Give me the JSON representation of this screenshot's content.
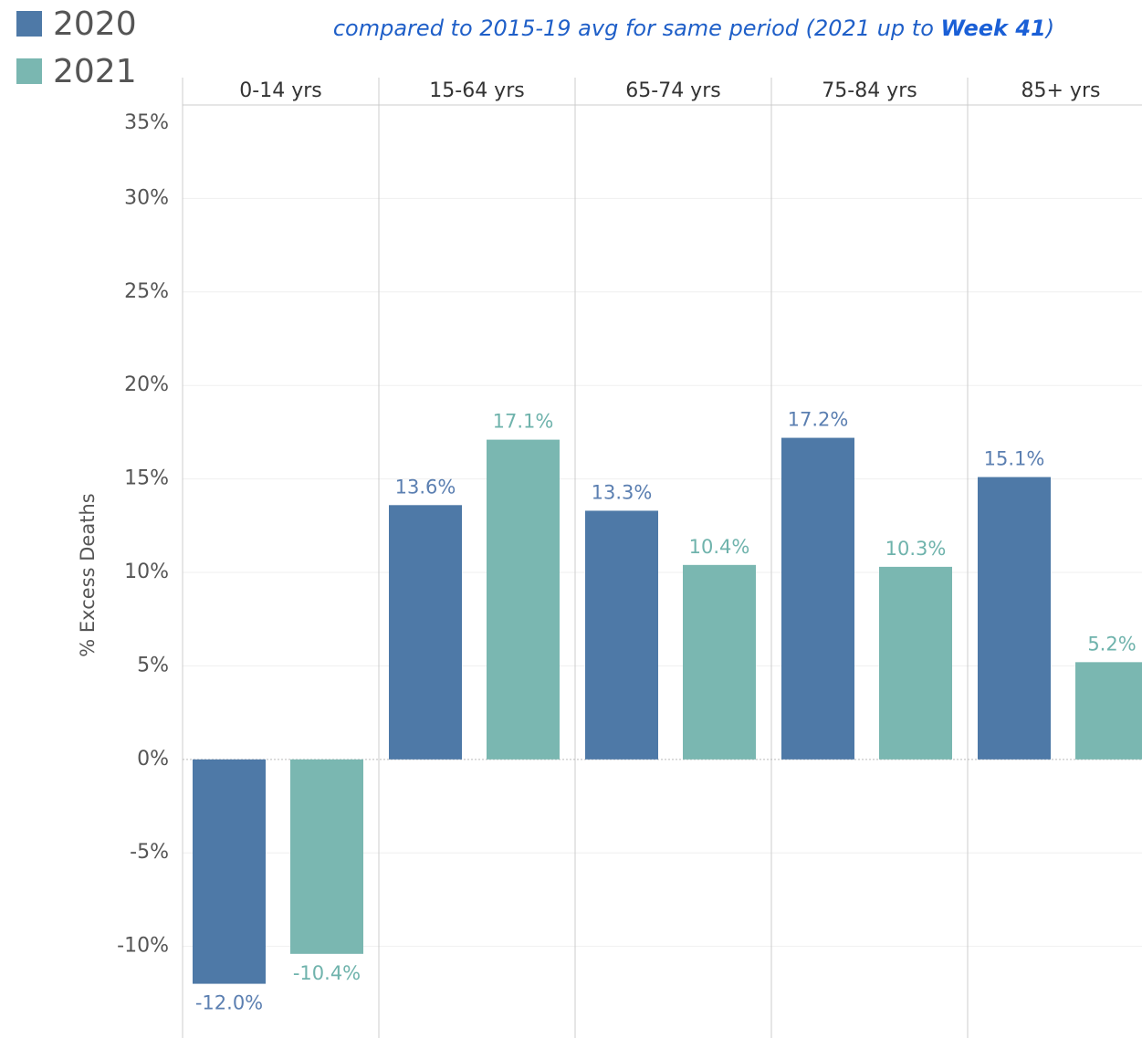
{
  "chart_data": {
    "type": "bar",
    "subtitle": "compared to 2015-19 avg for same period (2021 up to ",
    "subtitle_bold": "Week 41",
    "subtitle_end": ")",
    "y_label": "% Excess Deaths",
    "categories": [
      "0-14 yrs",
      "15-64 yrs",
      "65-74 yrs",
      "75-84 yrs",
      "85+ yrs"
    ],
    "series": [
      {
        "name": "2020",
        "color": "#4e79a7",
        "label_color": "#5b7fb1",
        "values": [
          -12.0,
          13.6,
          13.3,
          17.2,
          15.1
        ],
        "value_labels": [
          "-12.0%",
          "13.6%",
          "13.3%",
          "17.2%",
          "15.1%"
        ]
      },
      {
        "name": "2021",
        "color": "#7ab7b1",
        "label_color": "#6fb3ac",
        "values": [
          -10.4,
          17.1,
          10.4,
          10.3,
          5.2
        ],
        "value_labels": [
          "-10.4%",
          "17.1%",
          "10.4%",
          "10.3%",
          "5.2%"
        ]
      }
    ],
    "ylim": [
      -14.9,
      35
    ],
    "yticks": [
      {
        "value": 35,
        "label": "35%"
      },
      {
        "value": 30,
        "label": "30%"
      },
      {
        "value": 25,
        "label": "25%"
      },
      {
        "value": 20,
        "label": "20%"
      },
      {
        "value": 15,
        "label": "15%"
      },
      {
        "value": 10,
        "label": "10%"
      },
      {
        "value": 5,
        "label": "5%"
      },
      {
        "value": 0,
        "label": "0%"
      },
      {
        "value": -5,
        "label": "-5%"
      },
      {
        "value": -10,
        "label": "-10%"
      }
    ],
    "grid": true
  }
}
